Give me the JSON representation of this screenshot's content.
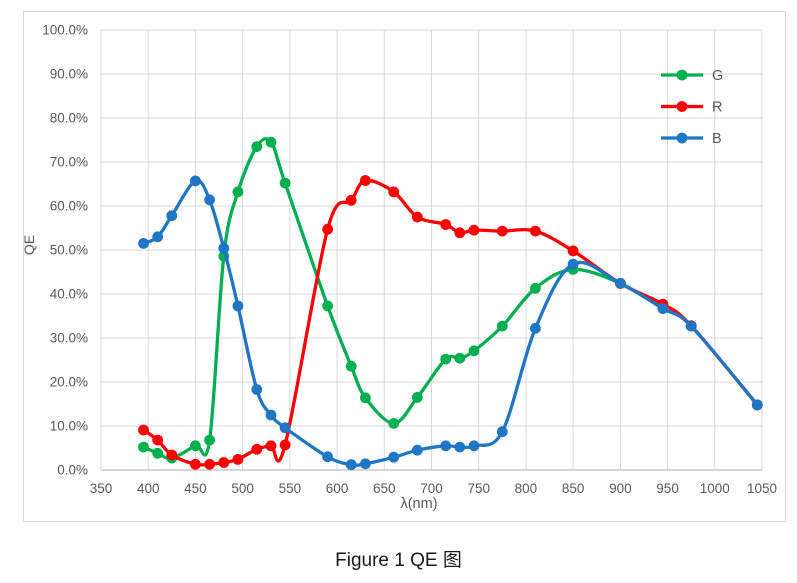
{
  "figure": {
    "caption": "Figure 1 QE 图"
  },
  "colors": {
    "grid": "#D9D9D9",
    "axis": "#BFBFBF",
    "tick_text": "#595959",
    "legend_text": "#595959",
    "frame_border": "#D9D9D9",
    "background": "#FFFFFF",
    "caption_text": "#1A1A1A",
    "series_green": "#00B050",
    "series_red": "#FF0000",
    "series_blue": "#1F76C4"
  },
  "chart_data": {
    "type": "line",
    "title": "",
    "xlabel": "λ(nm)",
    "ylabel": "QE",
    "xlim": [
      350,
      1050
    ],
    "ylim": [
      0,
      100
    ],
    "grid": true,
    "smooth": true,
    "markers": true,
    "legend_position": "top-right",
    "xticks": [
      350,
      400,
      450,
      500,
      550,
      600,
      650,
      700,
      750,
      800,
      850,
      900,
      950,
      1000,
      1050
    ],
    "ytick_labels": [
      "0.0%",
      "10.0%",
      "20.0%",
      "30.0%",
      "40.0%",
      "50.0%",
      "60.0%",
      "70.0%",
      "80.0%",
      "90.0%",
      "100.0%"
    ],
    "x": [
      395,
      410,
      425,
      450,
      465,
      480,
      495,
      515,
      530,
      545,
      590,
      615,
      630,
      660,
      685,
      715,
      730,
      745,
      775,
      810,
      850,
      900,
      945,
      975,
      1045
    ],
    "series": [
      {
        "name": "G",
        "color": "#00B050",
        "values": [
          5.2,
          3.8,
          2.7,
          5.5,
          6.8,
          48.6,
          63.2,
          73.5,
          74.5,
          65.2,
          37.3,
          23.6,
          16.4,
          10.6,
          16.5,
          25.2,
          25.4,
          27.1,
          32.7,
          41.3,
          45.6,
          42.4,
          36.7,
          32.7,
          14.8
        ]
      },
      {
        "name": "R",
        "color": "#FF0000",
        "values": [
          9.1,
          6.8,
          3.4,
          1.3,
          1.3,
          1.7,
          2.4,
          4.7,
          5.5,
          5.7,
          54.7,
          61.3,
          65.8,
          63.2,
          57.5,
          55.8,
          53.9,
          54.5,
          54.3,
          54.3,
          49.8,
          42.4,
          37.7,
          32.8,
          14.8
        ]
      },
      {
        "name": "B",
        "color": "#1F76C4",
        "values": [
          51.5,
          53.0,
          57.8,
          65.7,
          61.4,
          50.4,
          37.3,
          18.3,
          12.5,
          9.6,
          3.0,
          1.2,
          1.4,
          2.9,
          4.5,
          5.5,
          5.2,
          5.5,
          8.7,
          32.2,
          46.8,
          42.4,
          36.7,
          32.7,
          14.8
        ]
      }
    ]
  }
}
